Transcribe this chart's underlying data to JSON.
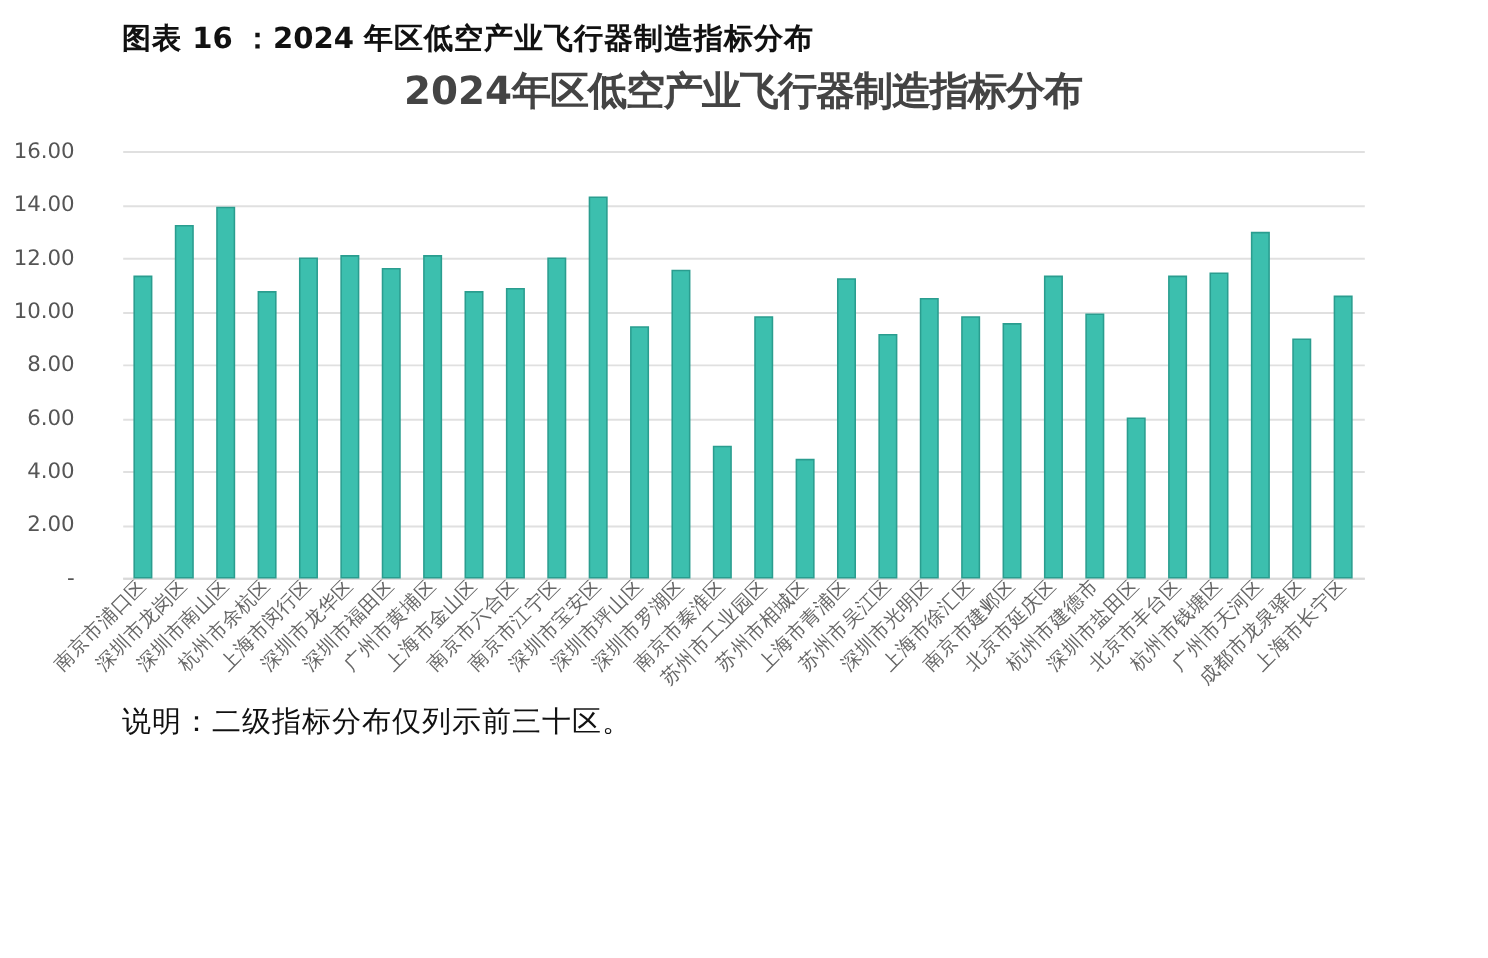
{
  "chart_data": {
    "type": "bar",
    "title": "2024年区低空产业飞行器制造指标分布",
    "annotations": [
      "图表 16 ：2024 年区低空产业飞行器制造指标分布",
      "说明：二级指标分布仅列示前三十区。"
    ],
    "categories": [
      "南京市浦口区",
      "深圳市龙岗区",
      "深圳市南山区",
      "杭州市余杭区",
      "上海市闵行区",
      "深圳市龙华区",
      "深圳市福田区",
      "广州市黄埔区",
      "上海市金山区",
      "南京市六合区",
      "南京市江宁区",
      "深圳市宝安区",
      "深圳市坪山区",
      "深圳市罗湖区",
      "南京市秦淮区",
      "苏州市工业园区",
      "苏州市相城区",
      "上海市青浦区",
      "苏州市吴江区",
      "深圳市光明区",
      "上海市徐汇区",
      "南京市建邺区",
      "北京市延庆区",
      "杭州市建德市",
      "深圳市盐田区",
      "北京市丰台区",
      "杭州市钱塘区",
      "广州市天河区",
      "成都市龙泉驿区",
      "上海市长宁区"
    ],
    "values": [
      11.3,
      13.2,
      13.88,
      10.72,
      11.98,
      12.07,
      11.59,
      12.07,
      10.72,
      10.84,
      11.98,
      14.27,
      9.4,
      11.52,
      4.92,
      9.78,
      4.43,
      11.2,
      9.11,
      10.46,
      9.78,
      9.52,
      11.3,
      9.88,
      5.98,
      11.3,
      11.42,
      12.94,
      8.94,
      10.55
    ],
    "color": "#3cbfae",
    "ylim": [
      0,
      16
    ],
    "yticks": [
      {
        "value": 0,
        "label": "-"
      },
      {
        "value": 2,
        "label": "2.00"
      },
      {
        "value": 4,
        "label": "4.00"
      },
      {
        "value": 6,
        "label": "6.00"
      },
      {
        "value": 8,
        "label": "8.00"
      },
      {
        "value": 10,
        "label": "10.00"
      },
      {
        "value": 12,
        "label": "12.00"
      },
      {
        "value": 14,
        "label": "14.00"
      },
      {
        "value": 16,
        "label": "16.00"
      }
    ],
    "grid": "y"
  }
}
